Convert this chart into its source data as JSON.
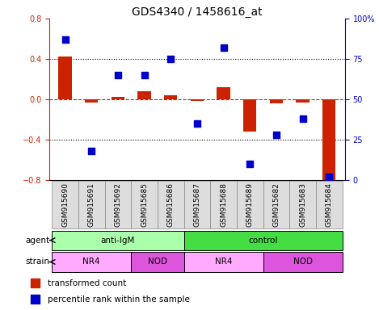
{
  "title": "GDS4340 / 1458616_at",
  "samples": [
    "GSM915690",
    "GSM915691",
    "GSM915692",
    "GSM915685",
    "GSM915686",
    "GSM915687",
    "GSM915688",
    "GSM915689",
    "GSM915682",
    "GSM915683",
    "GSM915684"
  ],
  "red_values": [
    0.42,
    -0.03,
    0.02,
    0.08,
    0.04,
    -0.02,
    0.12,
    -0.32,
    -0.04,
    -0.03,
    -0.8
  ],
  "blue_values": [
    87,
    18,
    65,
    65,
    75,
    35,
    82,
    10,
    28,
    38,
    2
  ],
  "agent_groups": [
    {
      "label": "anti-IgM",
      "start": 0,
      "end": 5,
      "color": "#AAFFAA"
    },
    {
      "label": "control",
      "start": 5,
      "end": 11,
      "color": "#44DD44"
    }
  ],
  "strain_groups": [
    {
      "label": "NR4",
      "start": 0,
      "end": 3,
      "color": "#FFAAFF"
    },
    {
      "label": "NOD",
      "start": 3,
      "end": 5,
      "color": "#DD55DD"
    },
    {
      "label": "NR4",
      "start": 5,
      "end": 8,
      "color": "#FFAAFF"
    },
    {
      "label": "NOD",
      "start": 8,
      "end": 11,
      "color": "#DD55DD"
    }
  ],
  "ylim_left": [
    -0.8,
    0.8
  ],
  "ylim_right": [
    0,
    100
  ],
  "yticks_left": [
    -0.8,
    -0.4,
    0.0,
    0.4,
    0.8
  ],
  "yticks_right": [
    0,
    25,
    50,
    75,
    100
  ],
  "ytick_labels_right": [
    "0",
    "25",
    "50",
    "75",
    "100%"
  ],
  "red_color": "#CC2200",
  "blue_color": "#0000CC",
  "bar_width": 0.5,
  "dot_size": 40,
  "title_fontsize": 10,
  "label_fontsize": 7.5,
  "tick_fontsize": 7,
  "legend_fontsize": 7.5,
  "sample_box_color": "#DDDDDD"
}
